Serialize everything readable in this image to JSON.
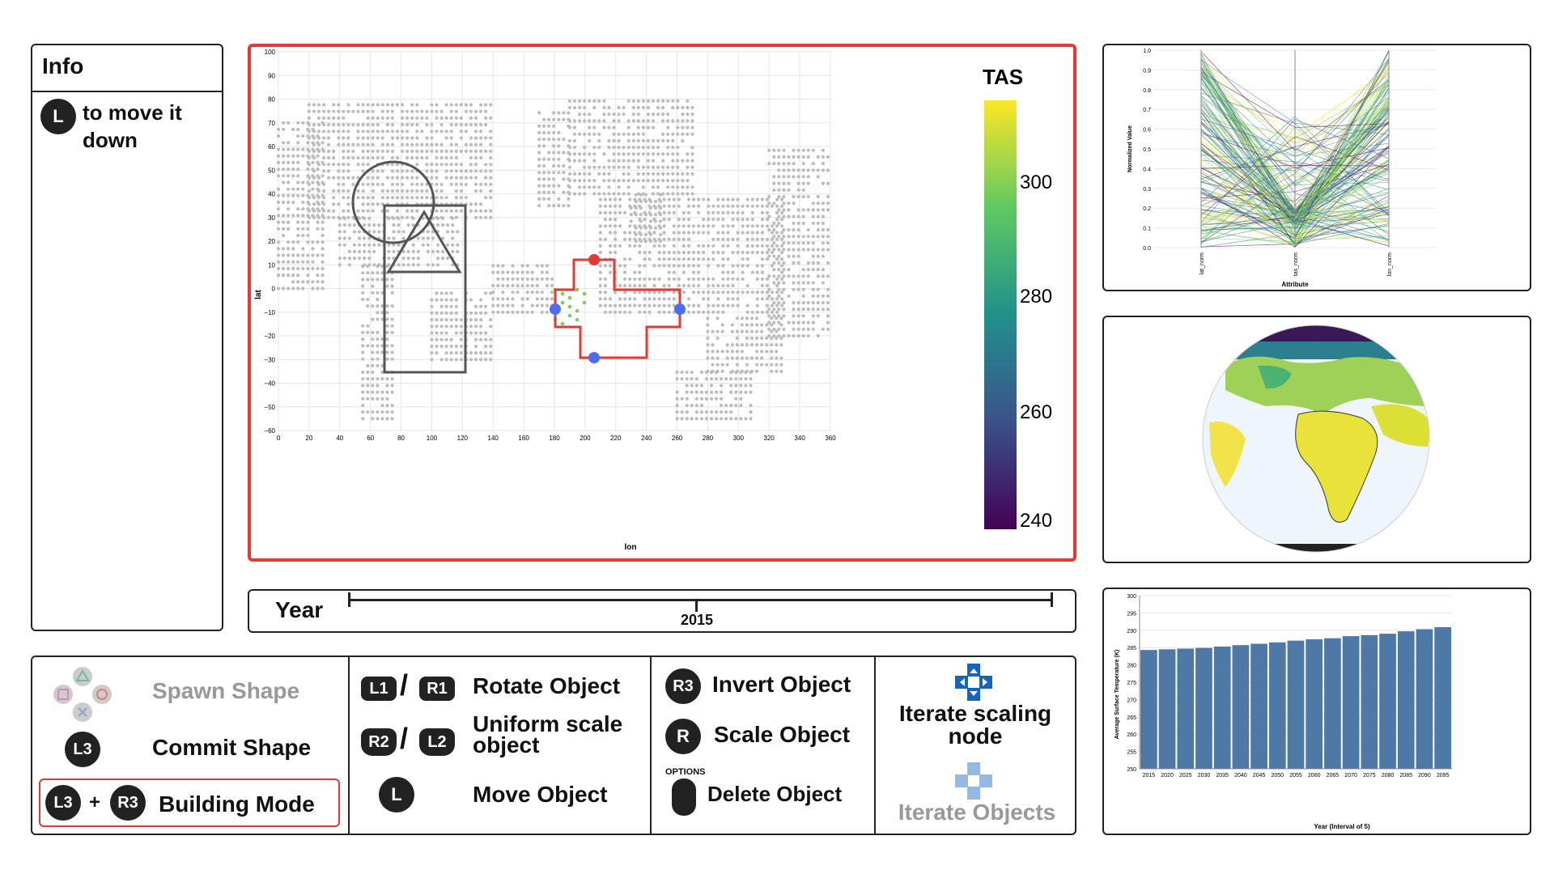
{
  "info": {
    "title": "Info",
    "button": "L",
    "text": "to move it down"
  },
  "map": {
    "xlabel": "lon",
    "ylabel": "lat",
    "xticks": [
      "0",
      "20",
      "40",
      "60",
      "80",
      "100",
      "120",
      "140",
      "160",
      "180",
      "200",
      "220",
      "240",
      "260",
      "280",
      "300",
      "320",
      "340",
      "360"
    ],
    "yticks": [
      "100",
      "90",
      "80",
      "70",
      "60",
      "50",
      "40",
      "30",
      "20",
      "10",
      "0",
      "−10",
      "−20",
      "−30",
      "−40",
      "−50",
      "−60"
    ],
    "colorbar": {
      "title": "TAS",
      "ticks": [
        "300",
        "280",
        "260",
        "240"
      ]
    },
    "frame_color": "#e53935"
  },
  "year": {
    "label": "Year",
    "value": "2015"
  },
  "controls": {
    "spawn": "Spawn Shape",
    "commit_button": "L3",
    "commit": "Commit Shape",
    "building_b1": "L3",
    "plus": "+",
    "building_b2": "R3",
    "building": "Building Mode",
    "rot_b1": "L1",
    "slash": "/",
    "rot_b2": "R1",
    "rotate": "Rotate Object",
    "scale_b1": "R2",
    "scale_b2": "L2",
    "uniform": "Uniform scale object",
    "move_button": "L",
    "move": "Move Object",
    "invert_button": "R3",
    "invert": "Invert Object",
    "scale_button": "R",
    "scale": "Scale Object",
    "options": "OPTIONS",
    "delete": "Delete Object",
    "iterate_scaling": "Iterate scaling node",
    "iterate_objects": "Iterate Objects"
  },
  "parallel": {
    "ylabel": "Normalized Value",
    "xlabel": "Attribute",
    "axes": [
      "lat_norm",
      "tas_norm",
      "lon_norm"
    ],
    "yticks": [
      "1.0",
      "0.9",
      "0.8",
      "0.7",
      "0.6",
      "0.5",
      "0.4",
      "0.3",
      "0.2",
      "0.1",
      "0.0"
    ]
  },
  "chart_data": {
    "type": "bar",
    "title": "",
    "xlabel": "Year (Interval of 5)",
    "ylabel": "Average Surface Temperature (K)",
    "ylim": [
      250,
      300
    ],
    "yticks": [
      "300",
      "295",
      "290",
      "285",
      "280",
      "275",
      "270",
      "265",
      "260",
      "255",
      "250"
    ],
    "categories": [
      "2015",
      "2020",
      "2025",
      "2030",
      "2035",
      "2040",
      "2045",
      "2050",
      "2055",
      "2060",
      "2065",
      "2070",
      "2075",
      "2080",
      "2085",
      "2090",
      "2095"
    ],
    "values": [
      284.3,
      284.5,
      284.7,
      284.9,
      285.3,
      285.7,
      286.1,
      286.5,
      287.0,
      287.4,
      287.7,
      288.3,
      288.6,
      289.0,
      289.7,
      290.3,
      290.9
    ],
    "bar_color": "#4e79a7"
  }
}
